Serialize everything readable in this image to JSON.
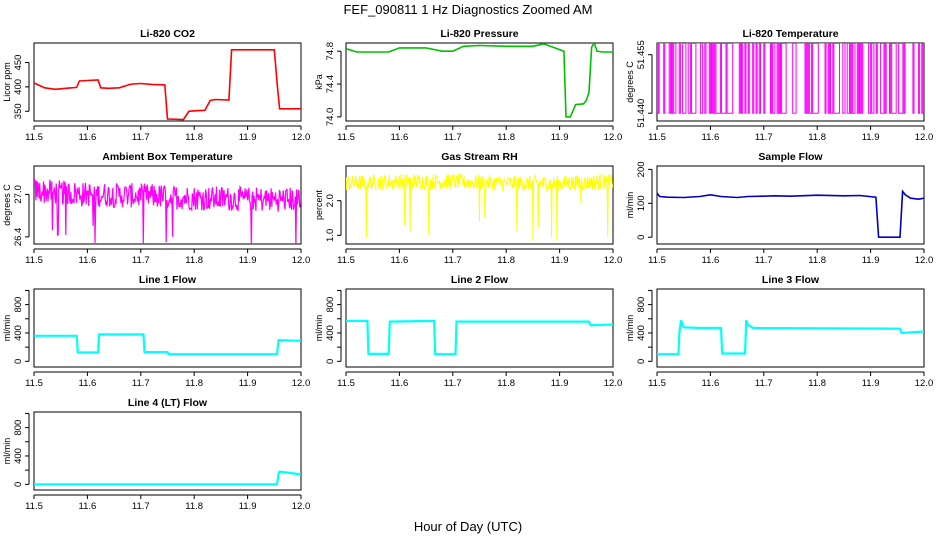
{
  "figure": {
    "title": "FEF_090811  1 Hz Diagnostics Zoomed AM",
    "xlabel": "Hour of Day (UTC)"
  },
  "chart_data": [
    {
      "type": "line",
      "title": "Li-820 CO2",
      "ylabel": "Licor ppm",
      "color": "#ff0000",
      "xlim": [
        11.5,
        12.0
      ],
      "ylim": [
        330,
        490
      ],
      "xticks": [
        "11.5",
        "11.6",
        "11.7",
        "11.8",
        "11.9",
        "12.0"
      ],
      "yticks": [
        350,
        400,
        450
      ],
      "series": [
        {
          "x": [
            11.5,
            11.52,
            11.54,
            11.56,
            11.58,
            11.585,
            11.6,
            11.62,
            11.625,
            11.64,
            11.66,
            11.68,
            11.685,
            11.7,
            11.72,
            11.745,
            11.75,
            11.78,
            11.79,
            11.8,
            11.82,
            11.83,
            11.84,
            11.865,
            11.87,
            11.9,
            11.95,
            11.955,
            11.96,
            12.0
          ],
          "y": [
            408,
            398,
            395,
            397,
            399,
            412,
            413,
            414,
            398,
            397,
            398,
            405,
            406,
            407,
            405,
            404,
            334,
            333,
            350,
            351,
            352,
            372,
            374,
            373,
            476,
            476,
            476,
            410,
            355,
            355
          ]
        }
      ]
    },
    {
      "type": "line",
      "title": "Li-820 Pressure",
      "ylabel": "kPa",
      "color": "#00c000",
      "xlim": [
        11.5,
        12.0
      ],
      "ylim": [
        73.95,
        74.9
      ],
      "xticks": [
        "11.5",
        "11.6",
        "11.7",
        "11.8",
        "11.9",
        "12.0"
      ],
      "yticks": [
        "74.0",
        "74.4",
        "74.8"
      ],
      "series": [
        {
          "x": [
            11.5,
            11.52,
            11.55,
            11.58,
            11.6,
            11.65,
            11.68,
            11.7,
            11.72,
            11.75,
            11.8,
            11.85,
            11.87,
            11.9,
            11.908,
            11.912,
            11.92,
            11.93,
            11.945,
            11.95,
            11.955,
            11.96,
            11.965,
            11.97,
            11.98,
            12.0
          ],
          "y": [
            74.83,
            74.79,
            74.79,
            74.79,
            74.84,
            74.84,
            74.8,
            74.8,
            74.86,
            74.87,
            74.86,
            74.86,
            74.89,
            74.82,
            74.8,
            74.0,
            74.0,
            74.15,
            74.16,
            74.2,
            74.3,
            74.85,
            74.9,
            74.8,
            74.79,
            74.79
          ]
        }
      ]
    },
    {
      "type": "line",
      "title": "Li-820 Temperature",
      "ylabel": "degrees C",
      "color": "#ff00ff",
      "xlim": [
        11.5,
        12.0
      ],
      "ylim": [
        51.438,
        51.458
      ],
      "xticks": [
        "11.5",
        "11.6",
        "11.7",
        "11.8",
        "11.9",
        "12.0"
      ],
      "yticks": [
        "51.440",
        "51.455"
      ],
      "series": [
        {
          "x": [
            11.5,
            12.0
          ],
          "y_range": [
            51.44,
            51.458
          ],
          "note": "noisy 1 Hz signal switching between 51.440 and 51.458"
        }
      ]
    },
    {
      "type": "line",
      "title": "Ambient Box Temperature",
      "ylabel": "degrees C",
      "color": "#ff00ff",
      "xlim": [
        11.5,
        12.0
      ],
      "ylim": [
        26.3,
        27.4
      ],
      "xticks": [
        "11.5",
        "11.6",
        "11.7",
        "11.8",
        "11.9",
        "12.0"
      ],
      "yticks": [
        "26.4",
        "27.0"
      ],
      "series": [
        {
          "x": [
            11.5,
            11.6,
            11.7,
            11.8,
            11.9,
            12.0
          ],
          "y": [
            27.05,
            27.0,
            26.98,
            26.95,
            26.93,
            26.93
          ],
          "note": "noisy band approx. 26.8 to 27.3 with dips to about 26.3"
        }
      ]
    },
    {
      "type": "line",
      "title": "Gas Stream RH",
      "ylabel": "percent",
      "color": "#ffff00",
      "xlim": [
        11.5,
        12.0
      ],
      "ylim": [
        0.75,
        3.0
      ],
      "xticks": [
        "11.5",
        "11.6",
        "11.7",
        "11.8",
        "11.9",
        "12.0"
      ],
      "yticks": [
        "1.0",
        "2.0"
      ],
      "series": [
        {
          "x": [
            11.5,
            11.6,
            11.7,
            11.8,
            11.9,
            12.0
          ],
          "y": [
            2.5,
            2.55,
            2.55,
            2.5,
            2.5,
            2.55
          ],
          "spikes": [
            {
              "x": 11.538,
              "y": 0.95
            },
            {
              "x": 11.61,
              "y": 1.3
            },
            {
              "x": 11.62,
              "y": 1.1
            },
            {
              "x": 11.655,
              "y": 1.0
            },
            {
              "x": 11.75,
              "y": 1.4
            },
            {
              "x": 11.76,
              "y": 1.5
            },
            {
              "x": 11.82,
              "y": 1.1
            },
            {
              "x": 11.85,
              "y": 0.85
            },
            {
              "x": 11.86,
              "y": 1.2
            },
            {
              "x": 11.885,
              "y": 0.95
            },
            {
              "x": 11.895,
              "y": 0.85
            },
            {
              "x": 11.94,
              "y": 1.9
            },
            {
              "x": 11.99,
              "y": 0.95
            }
          ]
        }
      ]
    },
    {
      "type": "line",
      "title": "Sample Flow",
      "ylabel": "ml/min",
      "color": "#0000c0",
      "xlim": [
        11.5,
        12.0
      ],
      "ylim": [
        -20,
        210
      ],
      "xticks": [
        "11.5",
        "11.6",
        "11.7",
        "11.8",
        "11.9",
        "12.0"
      ],
      "yticks": [
        0,
        100,
        200
      ],
      "series": [
        {
          "x": [
            11.5,
            11.505,
            11.52,
            11.55,
            11.58,
            11.6,
            11.62,
            11.65,
            11.67,
            11.7,
            11.72,
            11.75,
            11.8,
            11.85,
            11.88,
            11.91,
            11.915,
            11.92,
            11.955,
            11.96,
            11.965,
            11.975,
            11.99,
            12.0
          ],
          "y": [
            130,
            120,
            118,
            117,
            120,
            125,
            120,
            117,
            120,
            121,
            122,
            121,
            124,
            122,
            123,
            118,
            0,
            0,
            0,
            135,
            125,
            115,
            112,
            115
          ]
        }
      ]
    },
    {
      "type": "line",
      "title": "Line 1 Flow",
      "ylabel": "ml/min",
      "color": "#00ffff",
      "xlim": [
        11.5,
        12.0
      ],
      "ylim": [
        -80,
        1020
      ],
      "xticks": [
        "11.5",
        "11.6",
        "11.7",
        "11.8",
        "11.9",
        "12.0"
      ],
      "yticks": [
        0,
        400,
        800
      ],
      "y_minor": [
        200,
        600,
        1000
      ],
      "series": [
        {
          "x": [
            11.5,
            11.58,
            11.582,
            11.62,
            11.622,
            11.705,
            11.707,
            11.75,
            11.752,
            11.955,
            11.958,
            12.0
          ],
          "y": [
            360,
            360,
            125,
            125,
            380,
            380,
            130,
            130,
            100,
            100,
            300,
            290
          ]
        }
      ]
    },
    {
      "type": "line",
      "title": "Line 2 Flow",
      "ylabel": "ml/min",
      "color": "#00ffff",
      "xlim": [
        11.5,
        12.0
      ],
      "ylim": [
        -80,
        1020
      ],
      "xticks": [
        "11.5",
        "11.6",
        "11.7",
        "11.8",
        "11.9",
        "12.0"
      ],
      "yticks": [
        0,
        400,
        800
      ],
      "y_minor": [
        200,
        600,
        1000
      ],
      "series": [
        {
          "x": [
            11.5,
            11.54,
            11.542,
            11.58,
            11.582,
            11.665,
            11.667,
            11.705,
            11.707,
            11.955,
            11.958,
            12.0
          ],
          "y": [
            570,
            570,
            105,
            105,
            560,
            570,
            100,
            100,
            560,
            560,
            510,
            520
          ]
        }
      ]
    },
    {
      "type": "line",
      "title": "Line 3 Flow",
      "ylabel": "ml/min",
      "color": "#00ffff",
      "xlim": [
        11.5,
        12.0
      ],
      "ylim": [
        -80,
        1020
      ],
      "xticks": [
        "11.5",
        "11.6",
        "11.7",
        "11.8",
        "11.9",
        "12.0"
      ],
      "yticks": [
        0,
        400,
        800
      ],
      "y_minor": [
        200,
        600,
        1000
      ],
      "series": [
        {
          "x": [
            11.5,
            11.54,
            11.542,
            11.545,
            11.55,
            11.58,
            11.582,
            11.62,
            11.622,
            11.665,
            11.667,
            11.67,
            11.68,
            11.955,
            11.958,
            12.0
          ],
          "y": [
            100,
            100,
            400,
            580,
            480,
            470,
            470,
            470,
            110,
            110,
            580,
            520,
            470,
            460,
            400,
            420
          ]
        }
      ]
    },
    {
      "type": "line",
      "title": "Line 4 (LT) Flow",
      "ylabel": "ml/min",
      "color": "#00ffff",
      "xlim": [
        11.5,
        12.0
      ],
      "ylim": [
        -80,
        1020
      ],
      "xticks": [
        "11.5",
        "11.6",
        "11.7",
        "11.8",
        "11.9",
        "12.0"
      ],
      "yticks": [
        0,
        400,
        800
      ],
      "y_minor": [
        200,
        600,
        1000
      ],
      "series": [
        {
          "x": [
            11.5,
            11.955,
            11.958,
            11.96,
            12.0
          ],
          "y": [
            0,
            0,
            150,
            180,
            140
          ]
        }
      ]
    }
  ]
}
